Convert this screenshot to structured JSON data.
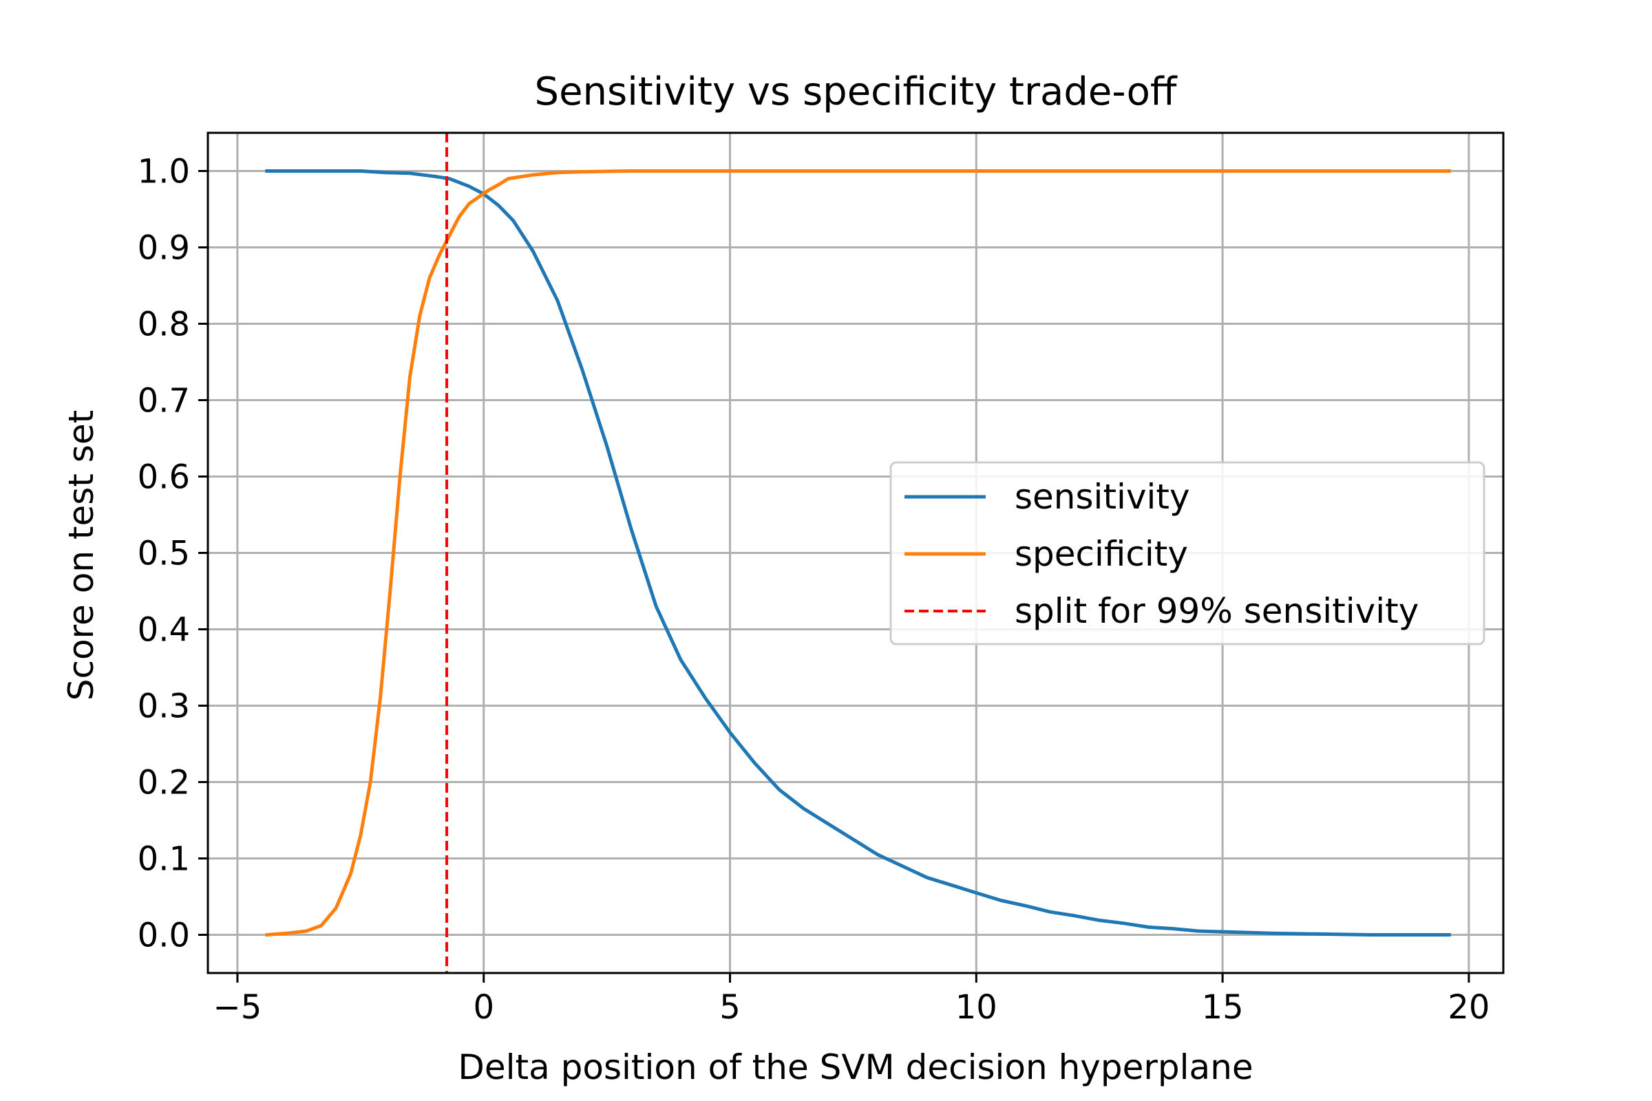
{
  "chart_data": {
    "type": "line",
    "title": "Sensitivity vs specificity trade-off",
    "xlabel": "Delta position of the SVM decision hyperplane",
    "ylabel": "Score on test set",
    "xlim": [
      -5.6,
      20.7
    ],
    "ylim": [
      -0.05,
      1.05
    ],
    "xticks": [
      -5,
      0,
      5,
      10,
      15,
      20
    ],
    "xtick_labels": [
      "−5",
      "0",
      "5",
      "10",
      "15",
      "20"
    ],
    "yticks": [
      0.0,
      0.1,
      0.2,
      0.3,
      0.4,
      0.5,
      0.6,
      0.7,
      0.8,
      0.9,
      1.0
    ],
    "ytick_labels": [
      "0.0",
      "0.1",
      "0.2",
      "0.3",
      "0.4",
      "0.5",
      "0.6",
      "0.7",
      "0.8",
      "0.9",
      "1.0"
    ],
    "grid": true,
    "legend_position": "center-right",
    "series": [
      {
        "name": "sensitivity",
        "color": "#1f77b4",
        "style": "solid",
        "x": [
          -4.4,
          -3.5,
          -2.5,
          -2.0,
          -1.5,
          -1.0,
          -0.7,
          -0.3,
          0.0,
          0.3,
          0.6,
          1.0,
          1.5,
          2.0,
          2.5,
          3.0,
          3.5,
          4.0,
          4.5,
          5.0,
          5.5,
          6.0,
          6.5,
          7.0,
          7.5,
          8.0,
          8.5,
          9.0,
          9.5,
          10.0,
          10.5,
          11.0,
          11.5,
          12.0,
          12.5,
          13.0,
          13.5,
          14.0,
          14.5,
          15.0,
          16.0,
          17.0,
          18.0,
          19.6
        ],
        "y": [
          1.0,
          1.0,
          1.0,
          0.998,
          0.997,
          0.993,
          0.99,
          0.98,
          0.97,
          0.955,
          0.935,
          0.895,
          0.83,
          0.74,
          0.64,
          0.53,
          0.43,
          0.36,
          0.31,
          0.265,
          0.225,
          0.19,
          0.165,
          0.145,
          0.125,
          0.105,
          0.09,
          0.075,
          0.065,
          0.055,
          0.045,
          0.038,
          0.03,
          0.025,
          0.019,
          0.015,
          0.01,
          0.008,
          0.005,
          0.004,
          0.002,
          0.001,
          0.0,
          0.0
        ]
      },
      {
        "name": "specificity",
        "color": "#ff7f0e",
        "style": "solid",
        "x": [
          -4.4,
          -4.0,
          -3.6,
          -3.3,
          -3.0,
          -2.7,
          -2.5,
          -2.3,
          -2.1,
          -1.9,
          -1.7,
          -1.5,
          -1.3,
          -1.1,
          -0.9,
          -0.7,
          -0.5,
          -0.3,
          -0.1,
          0.1,
          0.3,
          0.5,
          0.8,
          1.0,
          1.5,
          2.0,
          3.0,
          5.0,
          10.0,
          15.0,
          19.6
        ],
        "y": [
          0.0,
          0.002,
          0.005,
          0.012,
          0.035,
          0.08,
          0.13,
          0.2,
          0.31,
          0.45,
          0.6,
          0.73,
          0.81,
          0.86,
          0.89,
          0.915,
          0.94,
          0.957,
          0.966,
          0.975,
          0.982,
          0.99,
          0.993,
          0.995,
          0.998,
          0.999,
          1.0,
          1.0,
          1.0,
          1.0,
          1.0
        ]
      },
      {
        "name": "split for 99% sensitivity",
        "color": "#ff0000",
        "style": "dashed",
        "vline_x": -0.75
      }
    ]
  }
}
